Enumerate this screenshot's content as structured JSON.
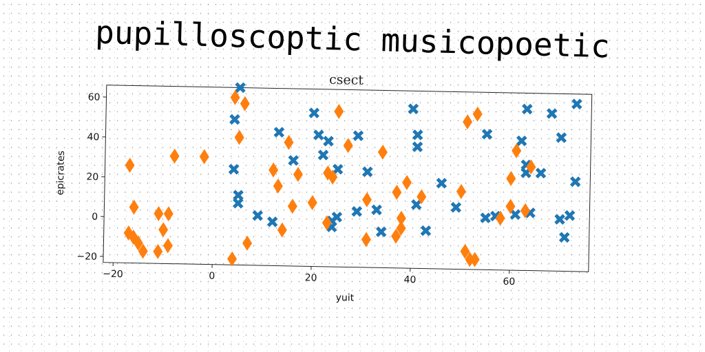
{
  "title": "pupilloscoptic musicopoetic",
  "chart_data": {
    "type": "scatter",
    "title": "csect",
    "xlabel": "yuit",
    "ylabel": "epicrates",
    "xlim": [
      -22,
      76
    ],
    "ylim": [
      -23,
      66
    ],
    "xticks": [
      -20,
      0,
      20,
      40,
      60
    ],
    "yticks": [
      -20,
      0,
      20,
      40,
      60
    ],
    "grid": false,
    "series": [
      {
        "marker": "x",
        "color": "#1f77b4",
        "points": [
          [
            5,
            66
          ],
          [
            4,
            50
          ],
          [
            4,
            25
          ],
          [
            5,
            12
          ],
          [
            5,
            8
          ],
          [
            9,
            2
          ],
          [
            12,
            -1
          ],
          [
            13,
            44
          ],
          [
            16,
            30
          ],
          [
            20,
            54
          ],
          [
            21,
            43
          ],
          [
            23,
            40
          ],
          [
            22,
            33
          ],
          [
            24,
            0
          ],
          [
            25,
            2
          ],
          [
            24,
            -3
          ],
          [
            25,
            26
          ],
          [
            29,
            43
          ],
          [
            29,
            5
          ],
          [
            31,
            25
          ],
          [
            33,
            6
          ],
          [
            34,
            -5
          ],
          [
            40,
            57
          ],
          [
            41,
            44
          ],
          [
            41,
            38
          ],
          [
            41,
            9
          ],
          [
            43,
            -4
          ],
          [
            46,
            20
          ],
          [
            49,
            8
          ],
          [
            55,
            45
          ],
          [
            55,
            3
          ],
          [
            57,
            4
          ],
          [
            61,
            5
          ],
          [
            62,
            42
          ],
          [
            63,
            58
          ],
          [
            63,
            30
          ],
          [
            63,
            26
          ],
          [
            64,
            6
          ],
          [
            66,
            26
          ],
          [
            68,
            56
          ],
          [
            70,
            3
          ],
          [
            70,
            44
          ],
          [
            71,
            -6
          ],
          [
            72,
            5
          ],
          [
            73,
            61
          ],
          [
            73,
            22
          ]
        ]
      },
      {
        "marker": "d",
        "color": "#ff7f0e",
        "points": [
          [
            -17,
            26
          ],
          [
            -16,
            5
          ],
          [
            -17,
            -8
          ],
          [
            -16,
            -10
          ],
          [
            -15,
            -13
          ],
          [
            -14,
            -17
          ],
          [
            -11,
            2
          ],
          [
            -11,
            -17
          ],
          [
            -10,
            -6
          ],
          [
            -9,
            2
          ],
          [
            -9,
            -14
          ],
          [
            -8,
            31
          ],
          [
            -2,
            31
          ],
          [
            4,
            61
          ],
          [
            4,
            -20
          ],
          [
            5,
            41
          ],
          [
            6,
            58
          ],
          [
            7,
            -12
          ],
          [
            12,
            25
          ],
          [
            13,
            17
          ],
          [
            14,
            -5
          ],
          [
            15,
            39
          ],
          [
            16,
            7
          ],
          [
            17,
            23
          ],
          [
            20,
            9
          ],
          [
            23,
            24
          ],
          [
            23,
            -1
          ],
          [
            24,
            22
          ],
          [
            25,
            55
          ],
          [
            27,
            38
          ],
          [
            31,
            11
          ],
          [
            31,
            -9
          ],
          [
            34,
            35
          ],
          [
            37,
            15
          ],
          [
            37,
            -7
          ],
          [
            38,
            -3
          ],
          [
            38,
            2
          ],
          [
            39,
            20
          ],
          [
            42,
            13
          ],
          [
            50,
            16
          ],
          [
            51,
            51
          ],
          [
            51,
            -14
          ],
          [
            52,
            -18
          ],
          [
            53,
            -18
          ],
          [
            53,
            55
          ],
          [
            58,
            3
          ],
          [
            60,
            23
          ],
          [
            60,
            9
          ],
          [
            61,
            37
          ],
          [
            63,
            7
          ],
          [
            64,
            29
          ]
        ]
      }
    ]
  }
}
